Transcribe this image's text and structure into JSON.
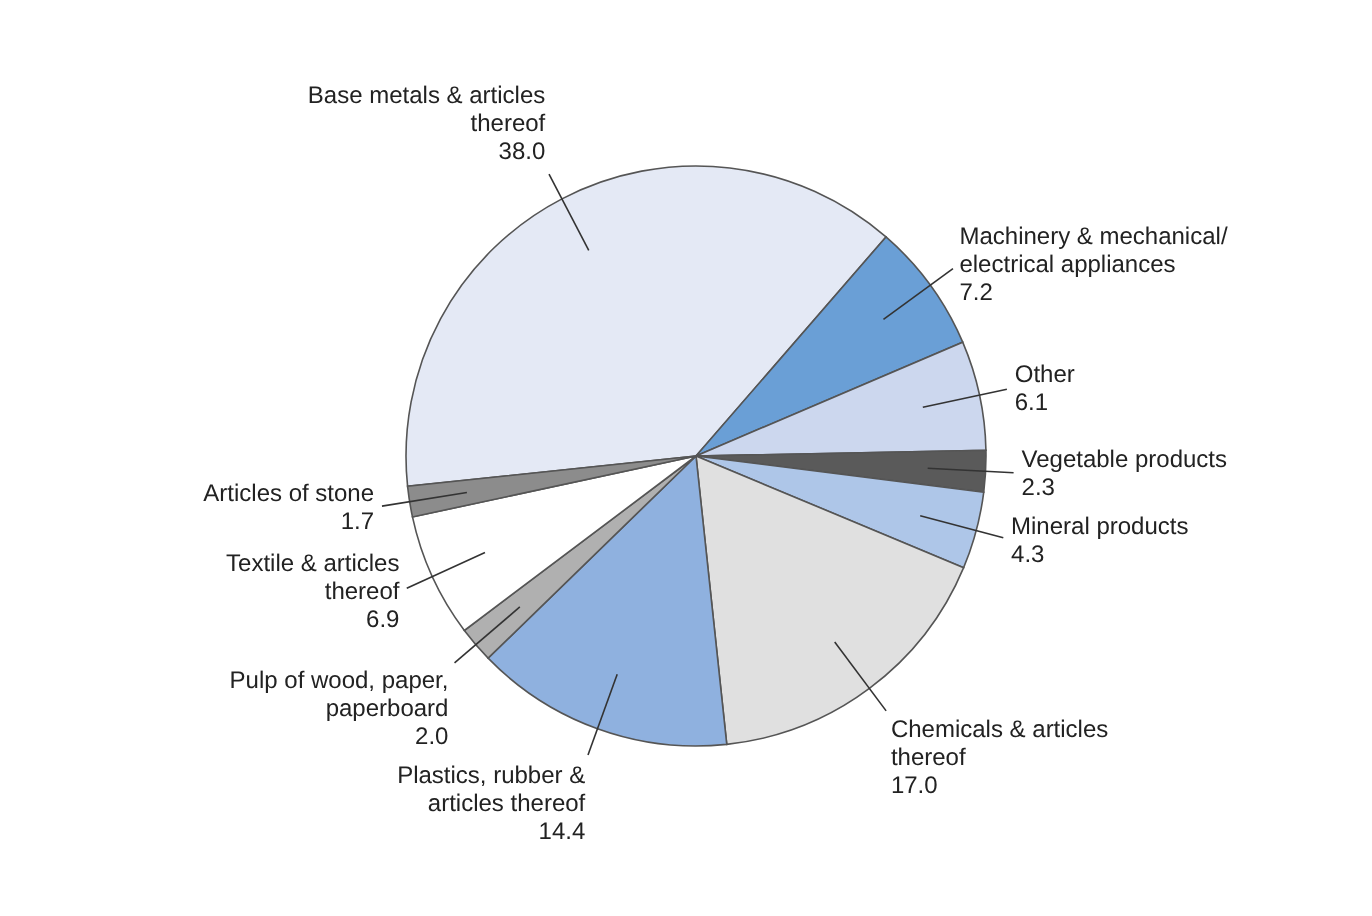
{
  "chart_data": {
    "type": "pie",
    "categories": [
      "Base metals & articles thereof",
      "Machinery & mechanical/ electrical appliances",
      "Other",
      "Vegetable products",
      "Mineral products",
      "Chemicals & articles thereof",
      "Plastics, rubber & articles thereof",
      "Pulp of wood, paper, paperboard",
      "Textile & articles thereof",
      "Articles of stone"
    ],
    "values": [
      38.0,
      7.2,
      6.1,
      2.3,
      4.3,
      17.0,
      14.4,
      2.0,
      6.9,
      1.7
    ],
    "colors": [
      "#e4e9f5",
      "#6a9fd6",
      "#ccd7ee",
      "#5a5a5a",
      "#aec6e8",
      "#e0e0e0",
      "#8fb1df",
      "#b0b0b0",
      "#ffffff",
      "#8c8c8c"
    ],
    "value_labels": [
      "38.0",
      "7.2",
      "6.1",
      "2.3",
      "4.3",
      "17.0",
      "14.4",
      "2.0",
      "6.9",
      "1.7"
    ],
    "legend": false
  }
}
